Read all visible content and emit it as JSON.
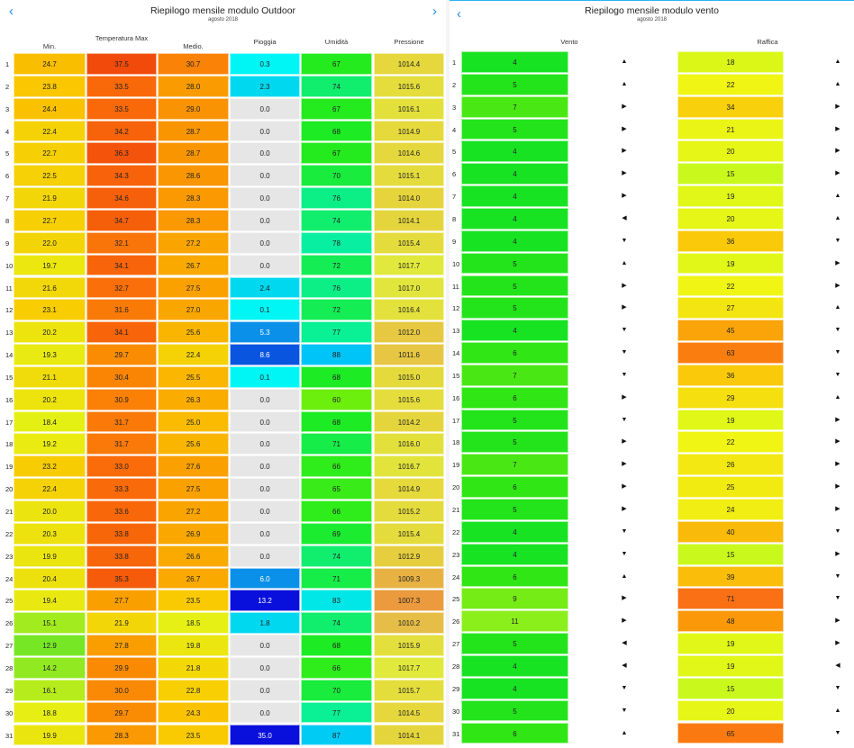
{
  "left": {
    "title": "Riepilogo mensile modulo Outdoor",
    "subtitle": "agosto 2018",
    "prev_icon": "chevron-left-icon",
    "next_icon": "chevron-right-icon",
    "nav_prev": "‹",
    "nav_next": "›",
    "columns": [
      "Min.",
      "Temperatura Max",
      "Medio.",
      "Pioggia",
      "Umidità",
      "Pressione"
    ],
    "rows": [
      {
        "day": "1",
        "min": "24.7",
        "max": "37.5",
        "avg": "30.7",
        "rain": "0.3",
        "hum": "67",
        "pres": "1014.4"
      },
      {
        "day": "2",
        "min": "23.8",
        "max": "33.5",
        "avg": "28.0",
        "rain": "2.3",
        "hum": "74",
        "pres": "1015.6"
      },
      {
        "day": "3",
        "min": "24.4",
        "max": "33.5",
        "avg": "29.0",
        "rain": "0.0",
        "hum": "67",
        "pres": "1016.1"
      },
      {
        "day": "4",
        "min": "22.4",
        "max": "34.2",
        "avg": "28.7",
        "rain": "0.0",
        "hum": "68",
        "pres": "1014.9"
      },
      {
        "day": "5",
        "min": "22.7",
        "max": "36.3",
        "avg": "28.7",
        "rain": "0.0",
        "hum": "67",
        "pres": "1014.6"
      },
      {
        "day": "6",
        "min": "22.5",
        "max": "34.3",
        "avg": "28.6",
        "rain": "0.0",
        "hum": "70",
        "pres": "1015.1"
      },
      {
        "day": "7",
        "min": "21.9",
        "max": "34.6",
        "avg": "28.3",
        "rain": "0.0",
        "hum": "76",
        "pres": "1014.0"
      },
      {
        "day": "8",
        "min": "22.7",
        "max": "34.7",
        "avg": "28.3",
        "rain": "0.0",
        "hum": "74",
        "pres": "1014.1"
      },
      {
        "day": "9",
        "min": "22.0",
        "max": "32.1",
        "avg": "27.2",
        "rain": "0.0",
        "hum": "78",
        "pres": "1015.4"
      },
      {
        "day": "10",
        "min": "19.7",
        "max": "34.1",
        "avg": "26.7",
        "rain": "0.0",
        "hum": "72",
        "pres": "1017.7"
      },
      {
        "day": "11",
        "min": "21.6",
        "max": "32.7",
        "avg": "27.5",
        "rain": "2.4",
        "hum": "76",
        "pres": "1017.0"
      },
      {
        "day": "12",
        "min": "23.1",
        "max": "31.6",
        "avg": "27.0",
        "rain": "0.1",
        "hum": "72",
        "pres": "1016.4"
      },
      {
        "day": "13",
        "min": "20.2",
        "max": "34.1",
        "avg": "25.6",
        "rain": "5.3",
        "hum": "77",
        "pres": "1012.0"
      },
      {
        "day": "14",
        "min": "19.3",
        "max": "29.7",
        "avg": "22.4",
        "rain": "8.6",
        "hum": "88",
        "pres": "1011.6"
      },
      {
        "day": "15",
        "min": "21.1",
        "max": "30.4",
        "avg": "25.5",
        "rain": "0.1",
        "hum": "68",
        "pres": "1015.0"
      },
      {
        "day": "16",
        "min": "20.2",
        "max": "30.9",
        "avg": "26.3",
        "rain": "0.0",
        "hum": "60",
        "pres": "1015.6"
      },
      {
        "day": "17",
        "min": "18.4",
        "max": "31.7",
        "avg": "25.0",
        "rain": "0.0",
        "hum": "68",
        "pres": "1014.2"
      },
      {
        "day": "18",
        "min": "19.2",
        "max": "31.7",
        "avg": "25.6",
        "rain": "0.0",
        "hum": "71",
        "pres": "1016.0"
      },
      {
        "day": "19",
        "min": "23.2",
        "max": "33.0",
        "avg": "27.6",
        "rain": "0.0",
        "hum": "66",
        "pres": "1016.7"
      },
      {
        "day": "20",
        "min": "22.4",
        "max": "33.3",
        "avg": "27.5",
        "rain": "0.0",
        "hum": "65",
        "pres": "1014.9"
      },
      {
        "day": "21",
        "min": "20.0",
        "max": "33.6",
        "avg": "27.2",
        "rain": "0.0",
        "hum": "66",
        "pres": "1015.2"
      },
      {
        "day": "22",
        "min": "20.3",
        "max": "33.8",
        "avg": "26.9",
        "rain": "0.0",
        "hum": "69",
        "pres": "1015.4"
      },
      {
        "day": "23",
        "min": "19.9",
        "max": "33.8",
        "avg": "26.6",
        "rain": "0.0",
        "hum": "74",
        "pres": "1012.9"
      },
      {
        "day": "24",
        "min": "20.4",
        "max": "35.3",
        "avg": "26.7",
        "rain": "6.0",
        "hum": "71",
        "pres": "1009.3"
      },
      {
        "day": "25",
        "min": "19.4",
        "max": "27.7",
        "avg": "23.5",
        "rain": "13.2",
        "hum": "83",
        "pres": "1007.3"
      },
      {
        "day": "26",
        "min": "15.1",
        "max": "21.9",
        "avg": "18.5",
        "rain": "1.8",
        "hum": "74",
        "pres": "1010.2"
      },
      {
        "day": "27",
        "min": "12.9",
        "max": "27.8",
        "avg": "19.8",
        "rain": "0.0",
        "hum": "68",
        "pres": "1015.9"
      },
      {
        "day": "28",
        "min": "14.2",
        "max": "29.9",
        "avg": "21.8",
        "rain": "0.0",
        "hum": "66",
        "pres": "1017.7"
      },
      {
        "day": "29",
        "min": "16.1",
        "max": "30.0",
        "avg": "22.8",
        "rain": "0.0",
        "hum": "70",
        "pres": "1015.7"
      },
      {
        "day": "30",
        "min": "18.8",
        "max": "29.7",
        "avg": "24.3",
        "rain": "0.0",
        "hum": "77",
        "pres": "1014.5"
      },
      {
        "day": "31",
        "min": "19.9",
        "max": "28.3",
        "avg": "23.5",
        "rain": "35.0",
        "hum": "87",
        "pres": "1014.1"
      }
    ]
  },
  "right": {
    "title": "Riepilogo mensile modulo vento",
    "subtitle": "agosto 2018",
    "prev_icon": "chevron-left-icon",
    "nav_prev": "‹",
    "columns": [
      "Vento",
      "Raffica"
    ],
    "rows": [
      {
        "day": "1",
        "wind": "4",
        "wind_dir": "▲",
        "gust": "18",
        "gust_dir": "▲"
      },
      {
        "day": "2",
        "wind": "5",
        "wind_dir": "▲",
        "gust": "22",
        "gust_dir": "▲"
      },
      {
        "day": "3",
        "wind": "7",
        "wind_dir": "▶",
        "gust": "34",
        "gust_dir": "▶"
      },
      {
        "day": "4",
        "wind": "5",
        "wind_dir": "▶",
        "gust": "21",
        "gust_dir": "▶"
      },
      {
        "day": "5",
        "wind": "4",
        "wind_dir": "▶",
        "gust": "20",
        "gust_dir": "▶"
      },
      {
        "day": "6",
        "wind": "4",
        "wind_dir": "▶",
        "gust": "15",
        "gust_dir": "▶"
      },
      {
        "day": "7",
        "wind": "4",
        "wind_dir": "▶",
        "gust": "19",
        "gust_dir": "▲"
      },
      {
        "day": "8",
        "wind": "4",
        "wind_dir": "◀",
        "gust": "20",
        "gust_dir": "▲"
      },
      {
        "day": "9",
        "wind": "4",
        "wind_dir": "▼",
        "gust": "36",
        "gust_dir": "▼"
      },
      {
        "day": "10",
        "wind": "5",
        "wind_dir": "▲",
        "gust": "19",
        "gust_dir": "▶"
      },
      {
        "day": "11",
        "wind": "5",
        "wind_dir": "▶",
        "gust": "22",
        "gust_dir": "▶"
      },
      {
        "day": "12",
        "wind": "5",
        "wind_dir": "▶",
        "gust": "27",
        "gust_dir": "▲"
      },
      {
        "day": "13",
        "wind": "4",
        "wind_dir": "▼",
        "gust": "45",
        "gust_dir": "▼"
      },
      {
        "day": "14",
        "wind": "6",
        "wind_dir": "▼",
        "gust": "63",
        "gust_dir": "▼"
      },
      {
        "day": "15",
        "wind": "7",
        "wind_dir": "▼",
        "gust": "36",
        "gust_dir": "▼"
      },
      {
        "day": "16",
        "wind": "6",
        "wind_dir": "▶",
        "gust": "29",
        "gust_dir": "▲"
      },
      {
        "day": "17",
        "wind": "5",
        "wind_dir": "▼",
        "gust": "19",
        "gust_dir": "▶"
      },
      {
        "day": "18",
        "wind": "5",
        "wind_dir": "▶",
        "gust": "22",
        "gust_dir": "▶"
      },
      {
        "day": "19",
        "wind": "7",
        "wind_dir": "▶",
        "gust": "26",
        "gust_dir": "▶"
      },
      {
        "day": "20",
        "wind": "6",
        "wind_dir": "▶",
        "gust": "25",
        "gust_dir": "▶"
      },
      {
        "day": "21",
        "wind": "5",
        "wind_dir": "▶",
        "gust": "24",
        "gust_dir": "▶"
      },
      {
        "day": "22",
        "wind": "4",
        "wind_dir": "▼",
        "gust": "40",
        "gust_dir": "▼"
      },
      {
        "day": "23",
        "wind": "4",
        "wind_dir": "▼",
        "gust": "15",
        "gust_dir": "▶"
      },
      {
        "day": "24",
        "wind": "6",
        "wind_dir": "▲",
        "gust": "39",
        "gust_dir": "▼"
      },
      {
        "day": "25",
        "wind": "9",
        "wind_dir": "▶",
        "gust": "71",
        "gust_dir": "▼"
      },
      {
        "day": "26",
        "wind": "11",
        "wind_dir": "▶",
        "gust": "48",
        "gust_dir": "▶"
      },
      {
        "day": "27",
        "wind": "5",
        "wind_dir": "◀",
        "gust": "19",
        "gust_dir": "▶"
      },
      {
        "day": "28",
        "wind": "4",
        "wind_dir": "◀",
        "gust": "19",
        "gust_dir": "◀"
      },
      {
        "day": "29",
        "wind": "4",
        "wind_dir": "▼",
        "gust": "15",
        "gust_dir": "▼"
      },
      {
        "day": "30",
        "wind": "5",
        "wind_dir": "▼",
        "gust": "20",
        "gust_dir": "▲"
      },
      {
        "day": "31",
        "wind": "6",
        "wind_dir": "▲",
        "gust": "65",
        "gust_dir": "▼"
      }
    ]
  },
  "colors": {
    "accent": "#1e88e5"
  }
}
